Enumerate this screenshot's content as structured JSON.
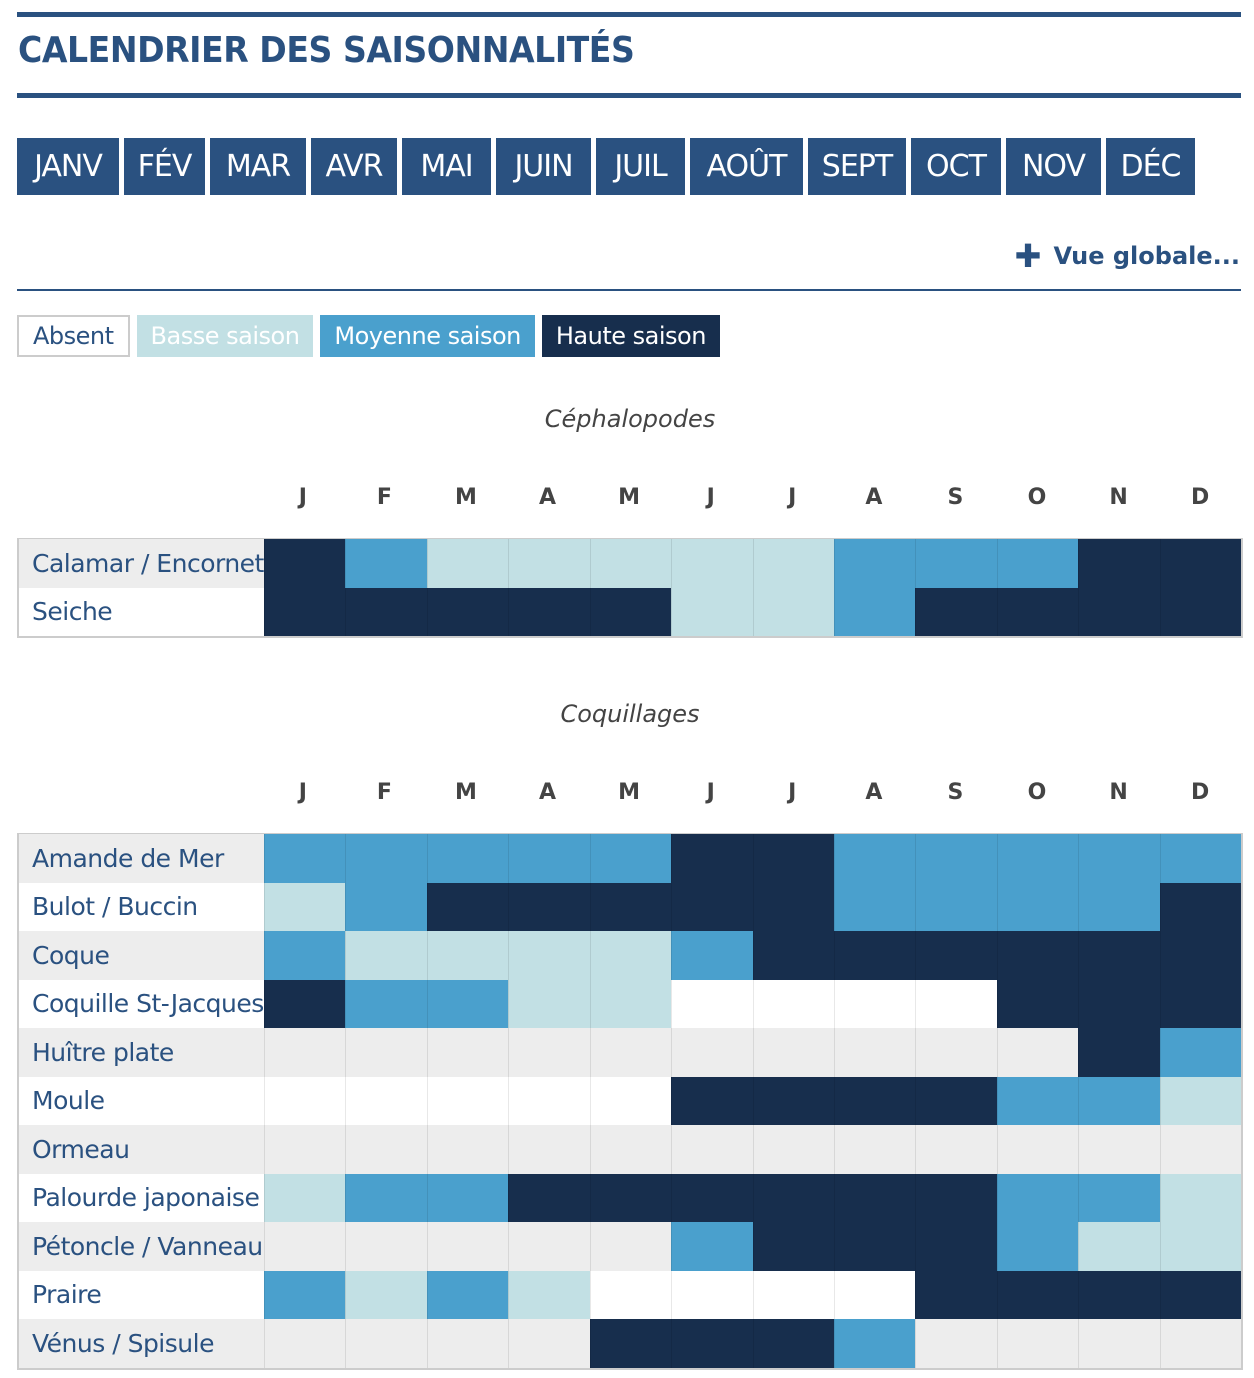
{
  "title": "CALENDRIER DES SAISONNALITÉS",
  "months_nav": [
    "JANV",
    "FÉV",
    "MAR",
    "AVR",
    "MAI",
    "JUIN",
    "JUIL",
    "AOÛT",
    "SEPT",
    "OCT",
    "NOV",
    "DÉC"
  ],
  "vue_globale": "Vue globale...",
  "legend": [
    {
      "label": "Absent",
      "color": "#ffffff"
    },
    {
      "label": "Basse saison",
      "color": "#c2e0e4"
    },
    {
      "label": "Moyenne saison",
      "color": "#4aa0cd"
    },
    {
      "label": "Haute saison",
      "color": "#172e4d"
    }
  ],
  "month_initials": [
    "J",
    "F",
    "M",
    "A",
    "M",
    "J",
    "J",
    "A",
    "S",
    "O",
    "N",
    "D"
  ],
  "categories": [
    {
      "name": "Céphalopodes",
      "species": [
        {
          "name": "Calamar / Encornet",
          "levels": [
            3,
            2,
            1,
            1,
            1,
            1,
            1,
            2,
            2,
            2,
            3,
            3
          ]
        },
        {
          "name": "Seiche",
          "levels": [
            3,
            3,
            3,
            3,
            3,
            1,
            1,
            2,
            3,
            3,
            3,
            3
          ]
        }
      ]
    },
    {
      "name": "Coquillages",
      "species": [
        {
          "name": "Amande de Mer",
          "levels": [
            2,
            2,
            2,
            2,
            2,
            3,
            3,
            2,
            2,
            2,
            2,
            2
          ]
        },
        {
          "name": "Bulot / Buccin",
          "levels": [
            1,
            2,
            3,
            3,
            3,
            3,
            3,
            2,
            2,
            2,
            2,
            3
          ]
        },
        {
          "name": "Coque",
          "levels": [
            2,
            1,
            1,
            1,
            1,
            2,
            3,
            3,
            3,
            3,
            3,
            3
          ]
        },
        {
          "name": "Coquille St-Jacques",
          "levels": [
            3,
            2,
            2,
            1,
            1,
            0,
            0,
            0,
            0,
            3,
            3,
            3
          ]
        },
        {
          "name": "Huître plate",
          "levels": [
            0,
            0,
            0,
            0,
            0,
            0,
            0,
            0,
            0,
            0,
            3,
            2
          ]
        },
        {
          "name": "Moule",
          "levels": [
            0,
            0,
            0,
            0,
            0,
            3,
            3,
            3,
            3,
            2,
            2,
            1
          ]
        },
        {
          "name": "Ormeau",
          "levels": [
            0,
            0,
            0,
            0,
            0,
            0,
            0,
            0,
            0,
            0,
            0,
            0
          ]
        },
        {
          "name": "Palourde japonaise",
          "levels": [
            1,
            2,
            2,
            3,
            3,
            3,
            3,
            3,
            3,
            2,
            2,
            1
          ]
        },
        {
          "name": "Pétoncle / Vanneau",
          "levels": [
            0,
            0,
            0,
            0,
            0,
            2,
            3,
            3,
            3,
            2,
            1,
            1
          ]
        },
        {
          "name": "Praire",
          "levels": [
            2,
            1,
            2,
            1,
            0,
            0,
            0,
            0,
            3,
            3,
            3,
            3
          ]
        },
        {
          "name": "Vénus / Spisule",
          "levels": [
            0,
            0,
            0,
            0,
            3,
            3,
            3,
            2,
            0,
            0,
            0,
            0
          ]
        }
      ]
    }
  ]
}
